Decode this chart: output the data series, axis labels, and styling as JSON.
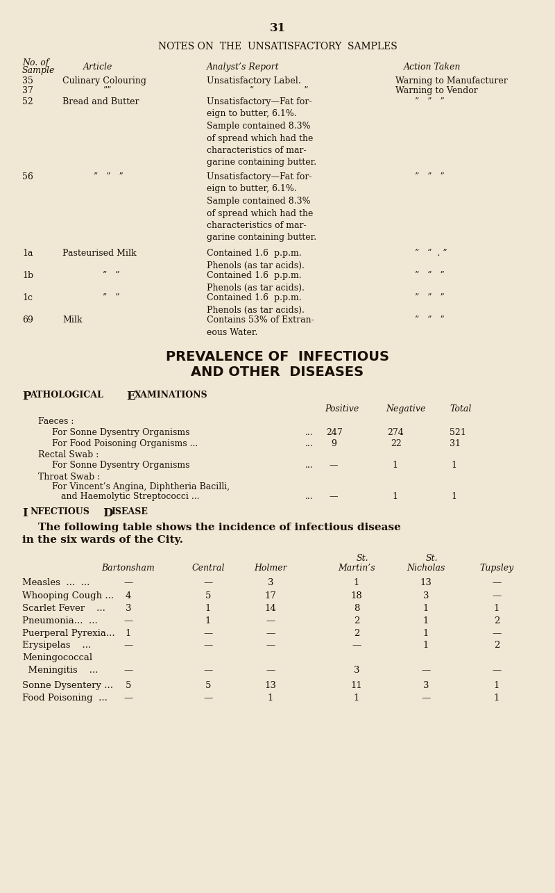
{
  "bg_color": "#f0e8d5",
  "text_color": "#1a1008",
  "page_number": "31",
  "section1_title": "NOTES ON  THE  UNSATISFACTORY  SAMPLES",
  "col_hdr_no": "No. of",
  "col_hdr_sample": "Sample",
  "col_hdr_article": "Article",
  "col_hdr_report": "Analyst’s Report",
  "col_hdr_action": "Action Taken",
  "row35_num": "35",
  "row35_article": "Culinary Colouring",
  "row35_report": "Unsatisfactory Label.",
  "row35_action": "Warning to Manufacturer",
  "row37_num": "37",
  "row37_article": "””",
  "row37_report": "”                  ”",
  "row37_action": "Warning to Vendor",
  "row52_num": "52",
  "row52_article": "Bread and Butter",
  "row52_report": "Unsatisfactory—Fat for-\neign to butter, 6.1%.\nSample contained 8.3%\nof spread which had the\ncharacteristics of mar-\ngarine containing butter.",
  "row52_action": "”   ”   ”",
  "row56_num": "56",
  "row56_article": "”   ”   ”",
  "row56_report": "Unsatisfactory—Fat for-\neign to butter, 6.1%.\nSample contained 8.3%\nof spread which had the\ncharacteristics of mar-\ngarine containing butter.",
  "row56_action": "”   ”   ”",
  "row1a_num": "1a",
  "row1a_article": "Pasteurised Milk",
  "row1a_report": "Contained 1.6  p.p.m.\nPhenols (as tar acids).",
  "row1a_action": "”   ”  . ”",
  "row1b_num": "1b",
  "row1b_article": "”   ”",
  "row1b_report": "Contained 1.6  p.p.m.\nPhenols (as tar acids).",
  "row1b_action": "”   ”   ”",
  "row1c_num": "1c",
  "row1c_article": "”   ”",
  "row1c_report": "Contained 1.6  p.p.m.\nPhenols (as tar acids).",
  "row1c_action": "”   ”   ”",
  "row69_num": "69",
  "row69_article": "Milk",
  "row69_report": "Contains 53% of Extran-\neous Water.",
  "row69_action": "”   ”   ”",
  "sec2_line1": "PREVALENCE OF  INFECTIOUS",
  "sec2_line2": "AND OTHER  DISEASES",
  "patho_title_big1": "P",
  "patho_title_sm1": "ATHOLOGICAL",
  "patho_title_big2": "E",
  "patho_title_sm2": "XAMINATIONS",
  "patho_hdr_pos": "Positive",
  "patho_hdr_neg": "Negative",
  "patho_hdr_tot": "Total",
  "faeces_lbl": "Faeces :",
  "sonne_lbl": "For Sonne Dysentry Organisms",
  "sonne_dots": "...",
  "sonne_pos": "247",
  "sonne_neg": "274",
  "sonne_tot": "521",
  "food_lbl": "For Food Poisoning Organisms ...",
  "food_dots": "...",
  "food_pos": "9",
  "food_neg": "22",
  "food_tot": "31",
  "rectal_lbl": "Rectal Swab :",
  "rectal_sonne_lbl": "For Sonne Dysentry Organisms",
  "rectal_dots": "...",
  "rectal_pos": "—",
  "rectal_neg": "1",
  "rectal_tot": "1",
  "throat_lbl": "Throat Swab :",
  "vincent_lbl1": "For Vincent’s Angina, Diphtheria Bacilli,",
  "vincent_lbl2": "and Haemolytic Streptococci ...",
  "vincent_dots": "...",
  "vincent_pos": "—",
  "vincent_neg": "1",
  "vincent_tot": "1",
  "inf_big1": "I",
  "inf_sm1": "NFECTIOUS",
  "inf_big2": "D",
  "inf_sm2": "ISEASE",
  "inf_para1": "The following table shows the incidence of infectious disease",
  "inf_para2": "in the six wards of the City.",
  "st_above_martin": "St.",
  "st_above_nicholas": "St.",
  "hdr_bartonsham": "Bartonsham",
  "hdr_central": "Central",
  "hdr_holmer": "Holmer",
  "hdr_martins": "Martin’s",
  "hdr_nicholas": "Nicholas",
  "hdr_tupsley": "Tupsley",
  "disease_rows": [
    [
      "Measles  ...  ...",
      "—",
      "—",
      "3",
      "1",
      "13",
      "—"
    ],
    [
      "Whooping Cough ...",
      "4",
      "5",
      "17",
      "18",
      "3",
      "—"
    ],
    [
      "Scarlet Fever    ...",
      "3",
      "1",
      "14",
      "8",
      "1",
      "1"
    ],
    [
      "Pneumonia...  ...",
      "—",
      "1",
      "—",
      "2",
      "1",
      "2"
    ],
    [
      "Puerperal Pyrexia...",
      "1",
      "—",
      "—",
      "2",
      "1",
      "—"
    ],
    [
      "Erysipelas    ...",
      "—",
      "—",
      "—",
      "—",
      "1",
      "2"
    ],
    [
      "Meningococcal",
      "",
      "",
      "",
      "",
      "",
      ""
    ],
    [
      "  Meningitis    ...",
      "—",
      "—",
      "—",
      "3",
      "—",
      "—"
    ],
    [
      "Sonne Dysentery ...",
      "5",
      "5",
      "13",
      "11",
      "3",
      "1"
    ],
    [
      "Food Poisoning  ...",
      "—",
      "—",
      "1",
      "1",
      "—",
      "1"
    ]
  ]
}
